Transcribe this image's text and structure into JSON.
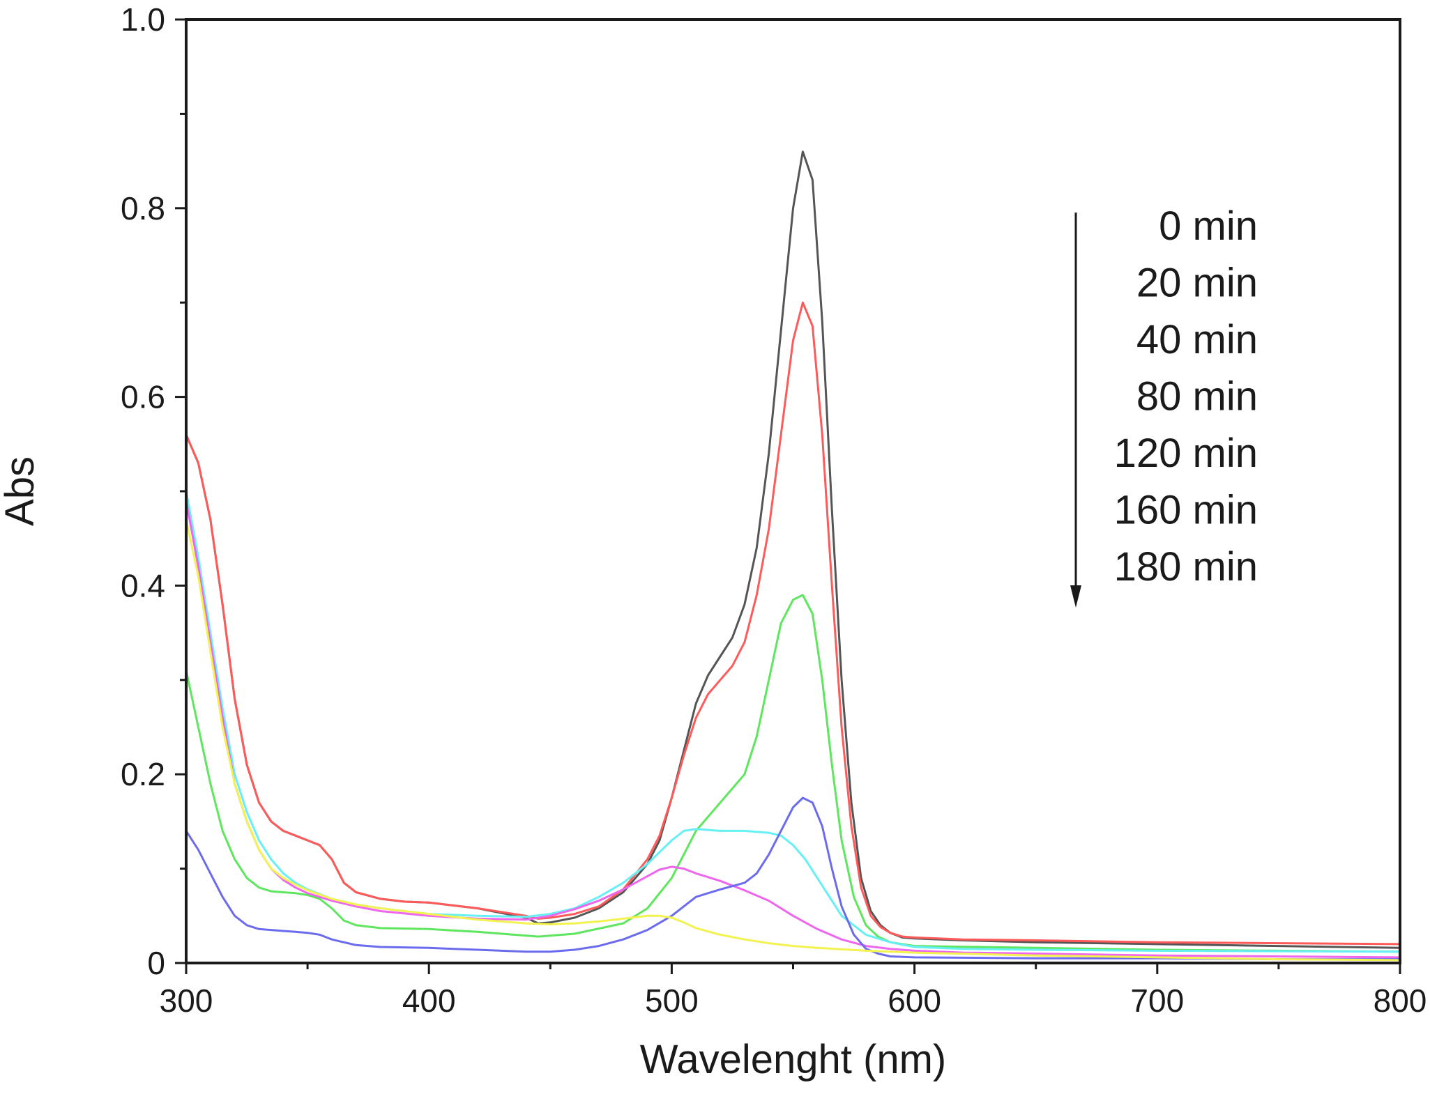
{
  "chart_data": {
    "type": "line",
    "title": "",
    "xlabel": "Wavelenght (nm)",
    "ylabel": "Abs",
    "xlim": [
      300,
      800
    ],
    "ylim": [
      0,
      1.0
    ],
    "x_ticks": [
      300,
      400,
      500,
      600,
      700,
      800
    ],
    "x_tick_labels": [
      "300",
      "400",
      "500",
      "600",
      "700",
      "800"
    ],
    "y_ticks": [
      0,
      0.2,
      0.4,
      0.6,
      0.8,
      1.0
    ],
    "y_tick_labels": [
      "0",
      "0.2",
      "0.4",
      "0.6",
      "0.8",
      "1.0"
    ],
    "grid": false,
    "legend_position": "top-right",
    "legend_arrow": "down",
    "series": [
      {
        "name": "0 min",
        "color": "#555555",
        "x": [
          300,
          305,
          310,
          315,
          320,
          325,
          330,
          335,
          340,
          345,
          350,
          355,
          360,
          365,
          370,
          380,
          390,
          400,
          420,
          440,
          445,
          450,
          460,
          470,
          480,
          490,
          495,
          500,
          505,
          510,
          515,
          520,
          525,
          530,
          535,
          540,
          545,
          550,
          554,
          558,
          562,
          566,
          570,
          574,
          578,
          582,
          586,
          590,
          595,
          600,
          620,
          650,
          700,
          750,
          800
        ],
        "y": [
          0.56,
          0.53,
          0.47,
          0.38,
          0.28,
          0.21,
          0.17,
          0.15,
          0.14,
          0.135,
          0.13,
          0.125,
          0.11,
          0.085,
          0.075,
          0.068,
          0.065,
          0.064,
          0.058,
          0.048,
          0.042,
          0.043,
          0.048,
          0.058,
          0.075,
          0.105,
          0.13,
          0.175,
          0.225,
          0.275,
          0.305,
          0.325,
          0.345,
          0.38,
          0.44,
          0.54,
          0.67,
          0.8,
          0.86,
          0.83,
          0.68,
          0.48,
          0.3,
          0.17,
          0.09,
          0.055,
          0.04,
          0.032,
          0.027,
          0.026,
          0.024,
          0.022,
          0.02,
          0.018,
          0.016
        ]
      },
      {
        "name": "20 min",
        "color": "#ff5a5a",
        "x": [
          300,
          305,
          310,
          315,
          320,
          325,
          330,
          335,
          340,
          345,
          350,
          355,
          360,
          365,
          370,
          380,
          390,
          400,
          420,
          440,
          445,
          450,
          460,
          470,
          480,
          490,
          495,
          500,
          505,
          510,
          515,
          520,
          525,
          530,
          535,
          540,
          545,
          550,
          554,
          558,
          562,
          566,
          570,
          574,
          578,
          582,
          586,
          590,
          595,
          600,
          620,
          650,
          700,
          750,
          800
        ],
        "y": [
          0.56,
          0.53,
          0.47,
          0.38,
          0.28,
          0.21,
          0.17,
          0.15,
          0.14,
          0.135,
          0.13,
          0.125,
          0.11,
          0.085,
          0.075,
          0.068,
          0.065,
          0.064,
          0.058,
          0.05,
          0.047,
          0.048,
          0.052,
          0.06,
          0.078,
          0.11,
          0.135,
          0.175,
          0.22,
          0.26,
          0.285,
          0.3,
          0.315,
          0.34,
          0.39,
          0.46,
          0.56,
          0.66,
          0.7,
          0.675,
          0.56,
          0.4,
          0.25,
          0.145,
          0.08,
          0.05,
          0.038,
          0.032,
          0.028,
          0.027,
          0.025,
          0.024,
          0.022,
          0.021,
          0.02
        ]
      },
      {
        "name": "40 min",
        "color": "#5ee65e",
        "x": [
          300,
          305,
          310,
          315,
          320,
          325,
          330,
          335,
          340,
          345,
          350,
          355,
          360,
          365,
          370,
          380,
          400,
          420,
          440,
          445,
          460,
          480,
          490,
          500,
          505,
          510,
          520,
          530,
          535,
          540,
          545,
          550,
          554,
          558,
          562,
          566,
          570,
          575,
          580,
          585,
          590,
          600,
          650,
          700,
          750,
          800
        ],
        "y": [
          0.31,
          0.25,
          0.19,
          0.14,
          0.11,
          0.09,
          0.08,
          0.076,
          0.075,
          0.074,
          0.072,
          0.068,
          0.058,
          0.045,
          0.04,
          0.037,
          0.036,
          0.033,
          0.029,
          0.028,
          0.031,
          0.042,
          0.058,
          0.09,
          0.115,
          0.14,
          0.17,
          0.2,
          0.24,
          0.3,
          0.36,
          0.385,
          0.39,
          0.37,
          0.3,
          0.21,
          0.13,
          0.07,
          0.04,
          0.028,
          0.022,
          0.018,
          0.016,
          0.014,
          0.013,
          0.012
        ]
      },
      {
        "name": "80 min",
        "color": "#66f0f5",
        "x": [
          300,
          305,
          310,
          315,
          320,
          325,
          330,
          335,
          340,
          345,
          350,
          360,
          370,
          380,
          400,
          420,
          440,
          450,
          460,
          470,
          480,
          490,
          500,
          505,
          510,
          520,
          530,
          540,
          545,
          550,
          555,
          560,
          565,
          570,
          580,
          590,
          600,
          620,
          650,
          700,
          800
        ],
        "y": [
          0.5,
          0.43,
          0.35,
          0.27,
          0.2,
          0.16,
          0.13,
          0.11,
          0.095,
          0.085,
          0.078,
          0.068,
          0.062,
          0.058,
          0.052,
          0.05,
          0.049,
          0.052,
          0.058,
          0.07,
          0.085,
          0.105,
          0.13,
          0.14,
          0.142,
          0.14,
          0.14,
          0.138,
          0.135,
          0.125,
          0.11,
          0.09,
          0.07,
          0.05,
          0.03,
          0.022,
          0.017,
          0.015,
          0.014,
          0.013,
          0.012
        ]
      },
      {
        "name": "120 min",
        "color": "#ee66ee",
        "x": [
          300,
          305,
          310,
          315,
          320,
          325,
          330,
          335,
          340,
          345,
          350,
          360,
          370,
          380,
          400,
          420,
          440,
          450,
          460,
          470,
          480,
          490,
          495,
          500,
          505,
          510,
          520,
          530,
          540,
          550,
          560,
          570,
          580,
          590,
          600,
          620,
          650,
          700,
          800
        ],
        "y": [
          0.49,
          0.42,
          0.34,
          0.26,
          0.19,
          0.15,
          0.12,
          0.1,
          0.088,
          0.08,
          0.074,
          0.066,
          0.06,
          0.055,
          0.05,
          0.047,
          0.046,
          0.05,
          0.057,
          0.066,
          0.078,
          0.092,
          0.099,
          0.102,
          0.1,
          0.095,
          0.087,
          0.077,
          0.066,
          0.05,
          0.036,
          0.025,
          0.018,
          0.015,
          0.013,
          0.011,
          0.01,
          0.008,
          0.006
        ]
      },
      {
        "name": "160 min",
        "color": "#6b6bee",
        "x": [
          300,
          305,
          310,
          315,
          320,
          325,
          330,
          335,
          340,
          345,
          350,
          355,
          360,
          370,
          380,
          400,
          420,
          440,
          450,
          460,
          470,
          480,
          490,
          500,
          510,
          520,
          530,
          535,
          540,
          545,
          550,
          554,
          558,
          562,
          566,
          570,
          575,
          580,
          585,
          590,
          600,
          650,
          700,
          750,
          800
        ],
        "y": [
          0.14,
          0.12,
          0.095,
          0.07,
          0.05,
          0.04,
          0.036,
          0.035,
          0.034,
          0.033,
          0.032,
          0.03,
          0.025,
          0.019,
          0.017,
          0.016,
          0.014,
          0.012,
          0.012,
          0.014,
          0.018,
          0.025,
          0.035,
          0.05,
          0.07,
          0.078,
          0.085,
          0.095,
          0.115,
          0.14,
          0.165,
          0.175,
          0.17,
          0.145,
          0.1,
          0.06,
          0.03,
          0.015,
          0.01,
          0.007,
          0.006,
          0.005,
          0.005,
          0.004,
          0.004
        ]
      },
      {
        "name": "180 min",
        "color": "#f2f250",
        "x": [
          300,
          305,
          310,
          315,
          320,
          325,
          330,
          335,
          340,
          345,
          350,
          360,
          370,
          380,
          400,
          420,
          440,
          450,
          460,
          470,
          480,
          490,
          495,
          500,
          505,
          510,
          520,
          530,
          540,
          550,
          560,
          580,
          600,
          650,
          700,
          750,
          800
        ],
        "y": [
          0.47,
          0.41,
          0.33,
          0.25,
          0.19,
          0.15,
          0.12,
          0.1,
          0.09,
          0.083,
          0.077,
          0.068,
          0.062,
          0.058,
          0.052,
          0.046,
          0.042,
          0.041,
          0.042,
          0.044,
          0.047,
          0.05,
          0.05,
          0.048,
          0.043,
          0.037,
          0.03,
          0.025,
          0.021,
          0.018,
          0.016,
          0.013,
          0.011,
          0.008,
          0.006,
          0.004,
          0.003
        ]
      }
    ]
  }
}
